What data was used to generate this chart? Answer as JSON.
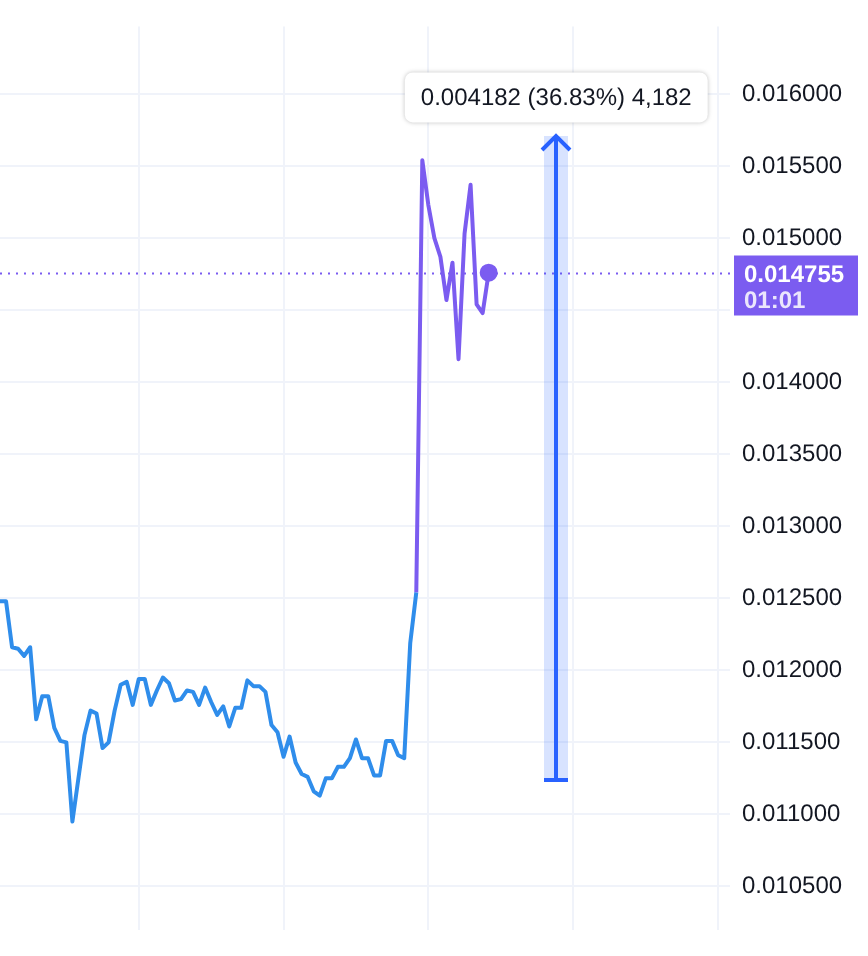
{
  "chart_data": {
    "type": "line",
    "categories": [
      null,
      null,
      null,
      null,
      null,
      null,
      null,
      null,
      null,
      null,
      null,
      null,
      null,
      null,
      null,
      null,
      null,
      null,
      null,
      null,
      null,
      null,
      null,
      null,
      null,
      null,
      null,
      null,
      null,
      null,
      null,
      null,
      null,
      null,
      null,
      null,
      null,
      null,
      null,
      null,
      null,
      null,
      null,
      null,
      null,
      null,
      null,
      null,
      null,
      null,
      null,
      null,
      null,
      null,
      null,
      null,
      null,
      null,
      null,
      null,
      null,
      null,
      null,
      null,
      null,
      null,
      null,
      null,
      null,
      null,
      null,
      null,
      null,
      null,
      null,
      null,
      null,
      null,
      null,
      null,
      null,
      null,
      null,
      null,
      null,
      null,
      null,
      null,
      null,
      null,
      null,
      null,
      null,
      null,
      null,
      null,
      null,
      null,
      null,
      null,
      null,
      null,
      null,
      null,
      null,
      null,
      null,
      null,
      null,
      null,
      null,
      null,
      null,
      null,
      null,
      null,
      null,
      null,
      null,
      null,
      null,
      null
    ],
    "series": [
      {
        "color": "#2f8deb",
        "values": [
          0.01248,
          0.01248,
          0.01216,
          0.01215,
          0.0121,
          0.01216,
          0.01166,
          0.01182,
          0.01182,
          0.0116,
          0.01151,
          0.0115,
          0.01095,
          0.01125,
          0.01155,
          0.01172,
          0.0117,
          0.01146,
          0.0115,
          0.01172,
          0.0119,
          0.01192,
          0.01176,
          0.01194,
          0.01194,
          0.01176,
          0.01186,
          0.01195,
          0.01191,
          0.01179,
          0.0118,
          0.01186,
          0.01185,
          0.01176,
          0.01188,
          0.01178,
          0.01169,
          0.01175,
          0.01161,
          0.01174,
          0.01174,
          0.01193,
          0.01189,
          0.01189,
          0.01185,
          0.01162,
          0.01157,
          0.0114,
          0.01154,
          0.01136,
          0.01128,
          0.01126,
          0.01116,
          0.01113,
          0.01125,
          0.01125,
          0.01133,
          0.01133,
          0.01139,
          0.01152,
          0.01139,
          0.01139,
          0.01127,
          0.01127,
          0.01151,
          0.01151,
          0.01141,
          0.01139,
          0.01219,
          0.01254,
          null,
          null,
          null,
          null,
          null,
          null,
          null,
          null,
          null,
          null,
          null,
          null,
          null,
          null,
          null,
          null,
          null,
          null,
          null,
          null,
          null,
          null,
          null,
          null,
          null,
          null,
          null,
          null,
          null,
          null,
          null,
          null,
          null,
          null,
          null,
          null,
          null,
          null,
          null,
          null,
          null,
          null,
          null,
          null,
          null,
          null,
          null,
          null,
          null,
          null,
          null,
          null
        ]
      },
      {
        "color": "#7b5cf0",
        "values": [
          null,
          null,
          null,
          null,
          null,
          null,
          null,
          null,
          null,
          null,
          null,
          null,
          null,
          null,
          null,
          null,
          null,
          null,
          null,
          null,
          null,
          null,
          null,
          null,
          null,
          null,
          null,
          null,
          null,
          null,
          null,
          null,
          null,
          null,
          null,
          null,
          null,
          null,
          null,
          null,
          null,
          null,
          null,
          null,
          null,
          null,
          null,
          null,
          null,
          null,
          null,
          null,
          null,
          null,
          null,
          null,
          null,
          null,
          null,
          null,
          null,
          null,
          null,
          null,
          null,
          null,
          null,
          null,
          null,
          0.01254,
          0.01554,
          0.01523,
          0.015,
          0.01487,
          0.01457,
          0.01483,
          0.01416,
          0.01503,
          0.01537,
          0.01454,
          0.01448,
          0.01476,
          null,
          null,
          null,
          null,
          null,
          null,
          null,
          null,
          null,
          null,
          null,
          null,
          null,
          null,
          null,
          null,
          null,
          null,
          null,
          null,
          null,
          null,
          null,
          null,
          null,
          null,
          null,
          null,
          null,
          null,
          null,
          null,
          null,
          null,
          null,
          null,
          null,
          null,
          null,
          null
        ]
      }
    ],
    "ylim": [
      0.0102,
      0.01647
    ],
    "yticks": [
      {
        "value": 0.0105,
        "label": "0.010500"
      },
      {
        "value": 0.011,
        "label": "0.011000"
      },
      {
        "value": 0.0115,
        "label": "0.011500"
      },
      {
        "value": 0.012,
        "label": "0.012000"
      },
      {
        "value": 0.0125,
        "label": "0.012500"
      },
      {
        "value": 0.013,
        "label": "0.013000"
      },
      {
        "value": 0.0135,
        "label": "0.013500"
      },
      {
        "value": 0.014,
        "label": "0.014000"
      },
      {
        "value": 0.0145,
        "label": null
      },
      {
        "value": 0.015,
        "label": "0.015000"
      },
      {
        "value": 0.0155,
        "label": "0.015500"
      },
      {
        "value": 0.016,
        "label": "0.016000"
      }
    ],
    "grid": true,
    "legend": false,
    "ref_lines": [
      {
        "axis": "y",
        "value": 0.014755,
        "label": "0.014755 01:01",
        "color": "#7b5cf0",
        "line_style": "dotted"
      }
    ],
    "annotations": [
      "0.004182 (36.83%) 4,182"
    ]
  }
}
